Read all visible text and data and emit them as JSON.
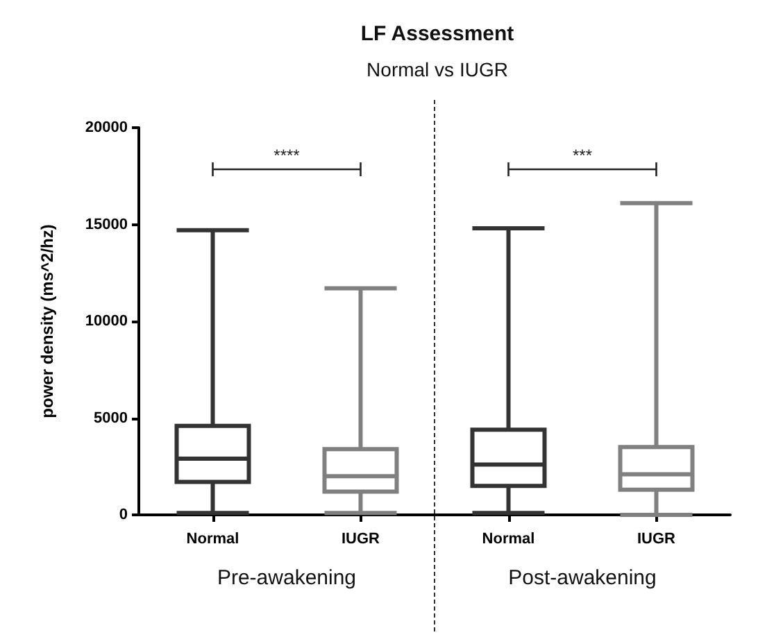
{
  "chart_data": {
    "type": "box",
    "title": "LF Assessment",
    "subtitle": "Normal vs IUGR",
    "ylabel": "power density (ms^2/hz)",
    "categories": [
      "Normal",
      "IUGR",
      "Normal",
      "IUGR"
    ],
    "colors": [
      "#333333",
      "#808080",
      "#333333",
      "#808080"
    ],
    "boxes": [
      {
        "low": 100,
        "q1": 1700,
        "median": 2900,
        "q3": 4600,
        "high": 14700
      },
      {
        "low": 100,
        "q1": 1200,
        "median": 2000,
        "q3": 3400,
        "high": 11700
      },
      {
        "low": 100,
        "q1": 1500,
        "median": 2600,
        "q3": 4400,
        "high": 14800
      },
      {
        "low": 0,
        "q1": 1300,
        "median": 2100,
        "q3": 3500,
        "high": 16100
      }
    ],
    "ylim": [
      0,
      20000
    ],
    "yticks": [
      0,
      5000,
      10000,
      15000,
      20000
    ],
    "grid": false,
    "annotations": [
      "****",
      "***",
      "Pre-awakening",
      "Post-awakening"
    ]
  }
}
